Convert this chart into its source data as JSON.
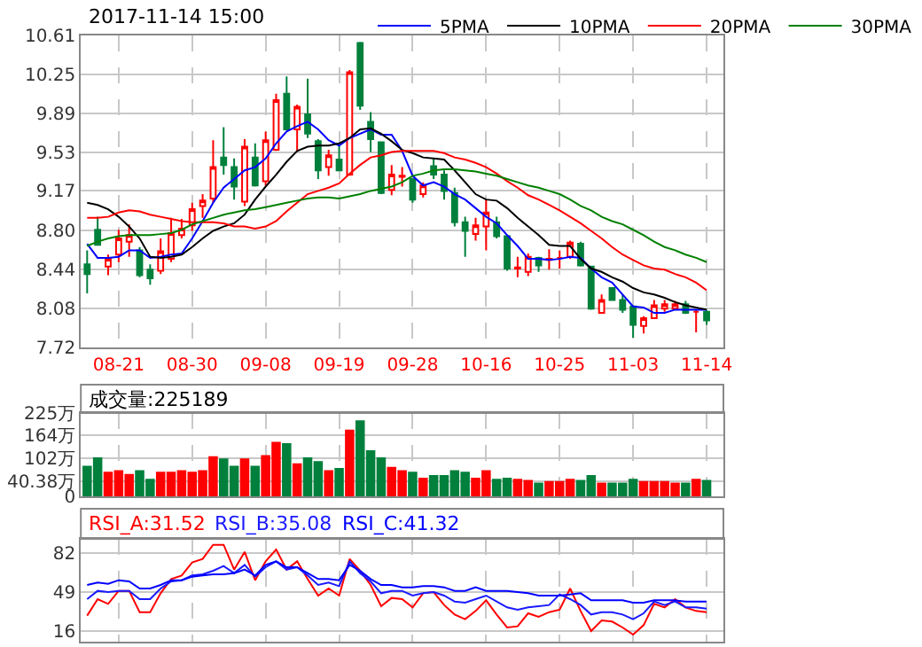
{
  "chart_data": [
    {
      "type": "candlestick",
      "title": "2017-11-14 15:00",
      "legend": "top",
      "grid": true,
      "categories": [
        null,
        null,
        null,
        "08-21",
        null,
        null,
        null,
        null,
        null,
        null,
        "08-30",
        null,
        null,
        null,
        null,
        null,
        null,
        "09-08",
        null,
        null,
        null,
        null,
        null,
        null,
        "09-19",
        null,
        null,
        null,
        null,
        null,
        null,
        "09-28",
        null,
        null,
        null,
        null,
        null,
        null,
        "10-16",
        null,
        null,
        null,
        null,
        null,
        null,
        "10-25",
        null,
        null,
        null,
        null,
        null,
        null,
        "11-03",
        null,
        null,
        null,
        null,
        null,
        null,
        "11-14"
      ],
      "ohlc": [
        [
          8.49,
          8.62,
          8.22,
          8.4
        ],
        [
          8.81,
          8.93,
          8.67,
          8.67
        ],
        [
          8.47,
          8.58,
          8.39,
          8.54
        ],
        [
          8.58,
          8.81,
          8.51,
          8.73
        ],
        [
          8.7,
          8.86,
          8.56,
          8.76
        ],
        [
          8.62,
          8.65,
          8.37,
          8.39
        ],
        [
          8.44,
          8.49,
          8.3,
          8.36
        ],
        [
          8.43,
          8.73,
          8.4,
          8.61
        ],
        [
          8.54,
          8.92,
          8.51,
          8.78
        ],
        [
          8.76,
          8.91,
          8.73,
          8.82
        ],
        [
          8.85,
          9.06,
          8.8,
          9.0
        ],
        [
          9.03,
          9.14,
          8.92,
          9.08
        ],
        [
          9.1,
          9.64,
          9.06,
          9.39
        ],
        [
          9.48,
          9.76,
          9.32,
          9.41
        ],
        [
          9.39,
          9.47,
          9.09,
          9.21
        ],
        [
          9.07,
          9.65,
          9.03,
          9.58
        ],
        [
          9.48,
          9.61,
          9.21,
          9.22
        ],
        [
          9.26,
          9.72,
          9.22,
          9.64
        ],
        [
          9.55,
          10.07,
          9.54,
          10.01
        ],
        [
          10.07,
          10.23,
          9.74,
          9.74
        ],
        [
          9.74,
          9.97,
          9.53,
          9.95
        ],
        [
          9.88,
          10.21,
          9.66,
          9.7
        ],
        [
          9.63,
          9.65,
          9.28,
          9.36
        ],
        [
          9.39,
          9.55,
          9.31,
          9.5
        ],
        [
          9.46,
          9.59,
          9.36,
          9.36
        ],
        [
          9.32,
          10.29,
          9.31,
          10.27
        ],
        [
          10.54,
          10.55,
          9.92,
          9.96
        ],
        [
          9.81,
          9.9,
          9.53,
          9.65
        ],
        [
          9.62,
          9.62,
          9.14,
          9.15
        ],
        [
          9.18,
          9.41,
          9.13,
          9.32
        ],
        [
          9.3,
          9.39,
          9.21,
          9.31
        ],
        [
          9.28,
          9.28,
          9.06,
          9.09
        ],
        [
          9.14,
          9.25,
          9.11,
          9.22
        ],
        [
          9.4,
          9.47,
          9.28,
          9.32
        ],
        [
          9.32,
          9.36,
          9.09,
          9.17
        ],
        [
          9.15,
          9.2,
          8.84,
          8.88
        ],
        [
          8.88,
          8.93,
          8.56,
          8.8
        ],
        [
          8.77,
          8.92,
          8.71,
          8.85
        ],
        [
          8.84,
          9.09,
          8.62,
          8.97
        ],
        [
          8.88,
          8.93,
          8.73,
          8.75
        ],
        [
          8.75,
          8.76,
          8.43,
          8.45
        ],
        [
          8.45,
          8.56,
          8.37,
          8.46
        ],
        [
          8.42,
          8.59,
          8.38,
          8.56
        ],
        [
          8.55,
          8.56,
          8.42,
          8.48
        ],
        [
          8.53,
          8.63,
          8.44,
          8.54
        ],
        [
          8.55,
          8.62,
          8.45,
          8.55
        ],
        [
          8.56,
          8.71,
          8.54,
          8.69
        ],
        [
          8.68,
          8.7,
          8.47,
          8.48
        ],
        [
          8.47,
          8.47,
          8.07,
          8.08
        ],
        [
          8.04,
          8.21,
          8.04,
          8.16
        ],
        [
          8.27,
          8.27,
          8.16,
          8.16
        ],
        [
          8.16,
          8.21,
          8.04,
          8.07
        ],
        [
          8.1,
          8.11,
          7.81,
          7.93
        ],
        [
          7.92,
          8.01,
          7.85,
          7.99
        ],
        [
          7.99,
          8.16,
          7.99,
          8.11
        ],
        [
          8.08,
          8.16,
          8.05,
          8.12
        ],
        [
          8.08,
          8.15,
          8.07,
          8.12
        ],
        [
          8.12,
          8.15,
          8.03,
          8.04
        ],
        [
          8.05,
          8.07,
          7.86,
          8.05
        ],
        [
          8.05,
          8.07,
          7.93,
          7.97
        ]
      ],
      "series": [
        {
          "name": "5PMA",
          "type": "line",
          "color": "#0000ff",
          "values": [
            8.68,
            8.55,
            8.55,
            8.56,
            8.62,
            8.62,
            8.55,
            8.56,
            8.58,
            8.59,
            8.73,
            8.89,
            9.06,
            9.2,
            9.28,
            9.36,
            9.39,
            9.47,
            9.61,
            9.72,
            9.77,
            9.81,
            9.74,
            9.64,
            9.59,
            9.66,
            9.7,
            9.74,
            9.69,
            9.69,
            9.54,
            9.31,
            9.22,
            9.25,
            9.21,
            9.14,
            9.09,
            9.01,
            8.93,
            8.87,
            8.76,
            8.66,
            8.54,
            8.54,
            8.53,
            8.54,
            8.56,
            8.55,
            8.45,
            8.37,
            8.32,
            8.21,
            8.1,
            8.09,
            8.04,
            8.04,
            8.07,
            8.07,
            8.07,
            8.07
          ]
        },
        {
          "name": "10PMA",
          "type": "line",
          "color": "#000000",
          "values": [
            9.06,
            9.04,
            9.0,
            8.93,
            8.84,
            8.73,
            8.56,
            8.55,
            8.56,
            8.58,
            8.65,
            8.73,
            8.8,
            8.84,
            8.87,
            8.95,
            9.09,
            9.21,
            9.32,
            9.44,
            9.54,
            9.58,
            9.59,
            9.59,
            9.61,
            9.66,
            9.74,
            9.75,
            9.7,
            9.63,
            9.55,
            9.52,
            9.48,
            9.47,
            9.46,
            9.36,
            9.25,
            9.14,
            9.09,
            9.08,
            9.01,
            8.92,
            8.84,
            8.76,
            8.67,
            8.66,
            8.66,
            8.54,
            8.45,
            8.42,
            8.37,
            8.33,
            8.27,
            8.23,
            8.21,
            8.18,
            8.14,
            8.11,
            8.09,
            8.07
          ]
        },
        {
          "name": "20PMA",
          "type": "line",
          "color": "#ff0000",
          "values": [
            8.92,
            8.92,
            8.93,
            8.97,
            8.99,
            8.98,
            8.95,
            8.93,
            8.91,
            8.89,
            8.88,
            8.88,
            8.88,
            8.87,
            8.84,
            8.84,
            8.82,
            8.84,
            8.89,
            8.98,
            9.06,
            9.14,
            9.17,
            9.2,
            9.24,
            9.33,
            9.41,
            9.48,
            9.5,
            9.53,
            9.54,
            9.54,
            9.54,
            9.54,
            9.52,
            9.48,
            9.46,
            9.43,
            9.39,
            9.33,
            9.26,
            9.2,
            9.13,
            9.09,
            9.04,
            8.99,
            8.93,
            8.87,
            8.8,
            8.73,
            8.65,
            8.58,
            8.53,
            8.48,
            8.45,
            8.44,
            8.4,
            8.37,
            8.32,
            8.25
          ]
        },
        {
          "name": "30PMA",
          "type": "line",
          "color": "#008000",
          "values": [
            8.66,
            8.7,
            8.73,
            8.75,
            8.76,
            8.76,
            8.76,
            8.77,
            8.78,
            8.81,
            8.86,
            8.89,
            8.92,
            8.95,
            8.97,
            8.99,
            9.0,
            9.02,
            9.04,
            9.06,
            9.08,
            9.1,
            9.11,
            9.11,
            9.1,
            9.12,
            9.14,
            9.17,
            9.19,
            9.21,
            9.25,
            9.31,
            9.33,
            9.36,
            9.37,
            9.37,
            9.36,
            9.35,
            9.33,
            9.31,
            9.28,
            9.25,
            9.22,
            9.2,
            9.17,
            9.14,
            9.09,
            9.03,
            8.99,
            8.93,
            8.89,
            8.86,
            8.81,
            8.76,
            8.7,
            8.65,
            8.62,
            8.58,
            8.55,
            8.51
          ]
        }
      ],
      "ylim": [
        7.72,
        10.61
      ],
      "yticks": [
        7.72,
        8.08,
        8.44,
        {
          "value": 8.8,
          "label": "8.80"
        },
        9.17,
        9.53,
        9.89,
        10.25,
        10.61
      ]
    },
    {
      "type": "bar",
      "title": "成交量:225189",
      "grid": true,
      "tick_labels": "y",
      "categories": [
        null,
        null,
        null,
        null,
        null,
        null,
        null,
        null,
        null,
        null,
        null,
        null,
        null,
        null,
        null,
        null,
        null,
        null,
        null,
        null,
        null,
        null,
        null,
        null,
        null,
        null,
        null,
        null,
        null,
        null,
        null,
        null,
        null,
        null,
        null,
        null,
        null,
        null,
        null,
        null,
        null,
        null,
        null,
        null,
        null,
        null,
        null,
        null,
        null,
        null,
        null,
        null,
        null,
        null,
        null,
        null,
        null,
        null,
        null,
        null
      ],
      "values": [
        80,
        103,
        64,
        68,
        58,
        68,
        45,
        64,
        64,
        68,
        64,
        68,
        106,
        100,
        80,
        100,
        80,
        109,
        145,
        141,
        87,
        103,
        93,
        68,
        74,
        178,
        203,
        122,
        103,
        77,
        68,
        64,
        48,
        55,
        55,
        68,
        64,
        48,
        68,
        45,
        48,
        45,
        42,
        35,
        39,
        39,
        45,
        42,
        55,
        35,
        35,
        35,
        45,
        39,
        39,
        39,
        35,
        35,
        45,
        42
      ],
      "colors": [
        "#00803c",
        "#00803c",
        "#ff0000",
        "#ff0000",
        "#ff0000",
        "#00803c",
        "#00803c",
        "#ff0000",
        "#ff0000",
        "#ff0000",
        "#ff0000",
        "#ff0000",
        "#ff0000",
        "#00803c",
        "#00803c",
        "#ff0000",
        "#00803c",
        "#ff0000",
        "#ff0000",
        "#00803c",
        "#ff0000",
        "#00803c",
        "#00803c",
        "#ff0000",
        "#00803c",
        "#ff0000",
        "#00803c",
        "#00803c",
        "#00803c",
        "#ff0000",
        "#ff0000",
        "#00803c",
        "#ff0000",
        "#00803c",
        "#00803c",
        "#00803c",
        "#00803c",
        "#ff0000",
        "#ff0000",
        "#00803c",
        "#00803c",
        "#ff0000",
        "#ff0000",
        "#00803c",
        "#ff0000",
        "#ff0000",
        "#ff0000",
        "#00803c",
        "#00803c",
        "#ff0000",
        "#00803c",
        "#00803c",
        "#00803c",
        "#ff0000",
        "#ff0000",
        "#ff0000",
        "#ff0000",
        "#00803c",
        "#ff0000",
        "#00803c"
      ],
      "ylim": [
        0,
        225
      ],
      "yticks": [
        0,
        {
          "value": 40.38,
          "label": "40.38万"
        },
        {
          "value": 102,
          "label": "102万"
        },
        {
          "value": 164,
          "label": "164万"
        },
        {
          "value": 225,
          "label": "225万"
        }
      ]
    },
    {
      "type": "line",
      "grid": true,
      "tick_labels": "y",
      "categories": [
        null,
        null,
        null,
        null,
        null,
        null,
        null,
        null,
        null,
        null,
        null,
        null,
        null,
        null,
        null,
        null,
        null,
        null,
        null,
        null,
        null,
        null,
        null,
        null,
        null,
        null,
        null,
        null,
        null,
        null,
        null,
        null,
        null,
        null,
        null,
        null,
        null,
        null,
        null,
        null,
        null,
        null,
        null,
        null,
        null,
        null,
        null,
        null,
        null,
        null,
        null,
        null,
        null,
        null,
        null,
        null,
        null,
        null,
        null,
        null
      ],
      "series": [
        {
          "name": "RSI_A:31.52",
          "color": "#ff0000",
          "values": [
            29,
            43,
            39,
            50,
            50,
            32,
            32,
            48,
            60,
            63,
            74,
            77,
            89,
            89,
            68,
            83,
            59,
            75,
            85,
            68,
            75,
            60,
            46,
            52,
            46,
            77,
            67,
            55,
            37,
            44,
            43,
            36,
            48,
            49,
            38,
            30,
            26,
            33,
            42,
            30,
            19,
            20,
            31,
            28,
            32,
            34,
            52,
            33,
            16,
            25,
            24,
            19,
            13,
            21,
            39,
            36,
            43,
            36,
            33,
            32
          ]
        },
        {
          "name": "RSI_B:35.08",
          "color": "#1a1aff",
          "values": [
            43,
            50,
            49,
            50,
            50,
            43,
            43,
            52,
            58,
            59,
            63,
            64,
            67,
            71,
            65,
            72,
            62,
            70,
            75,
            68,
            70,
            63,
            55,
            57,
            54,
            75,
            65,
            58,
            48,
            50,
            50,
            46,
            48,
            49,
            46,
            41,
            40,
            43,
            46,
            41,
            36,
            34,
            36,
            37,
            38,
            47,
            43,
            38,
            30,
            32,
            32,
            30,
            26,
            31,
            41,
            38,
            41,
            36,
            36,
            35
          ]
        },
        {
          "name": "RSI_C:41.32",
          "color": "#0000ff",
          "values": [
            55,
            57,
            56,
            59,
            58,
            52,
            52,
            55,
            59,
            59,
            62,
            63,
            64,
            64,
            65,
            68,
            63,
            72,
            75,
            70,
            70,
            65,
            60,
            60,
            59,
            72,
            67,
            60,
            55,
            55,
            53,
            53,
            54,
            54,
            53,
            50,
            50,
            53,
            50,
            50,
            50,
            49,
            48,
            46,
            46,
            46,
            47,
            48,
            42,
            42,
            42,
            42,
            40,
            40,
            42,
            42,
            42,
            41,
            41,
            41
          ]
        }
      ],
      "ylim": [
        7,
        94
      ],
      "yticks": [
        16,
        49,
        82
      ]
    }
  ]
}
